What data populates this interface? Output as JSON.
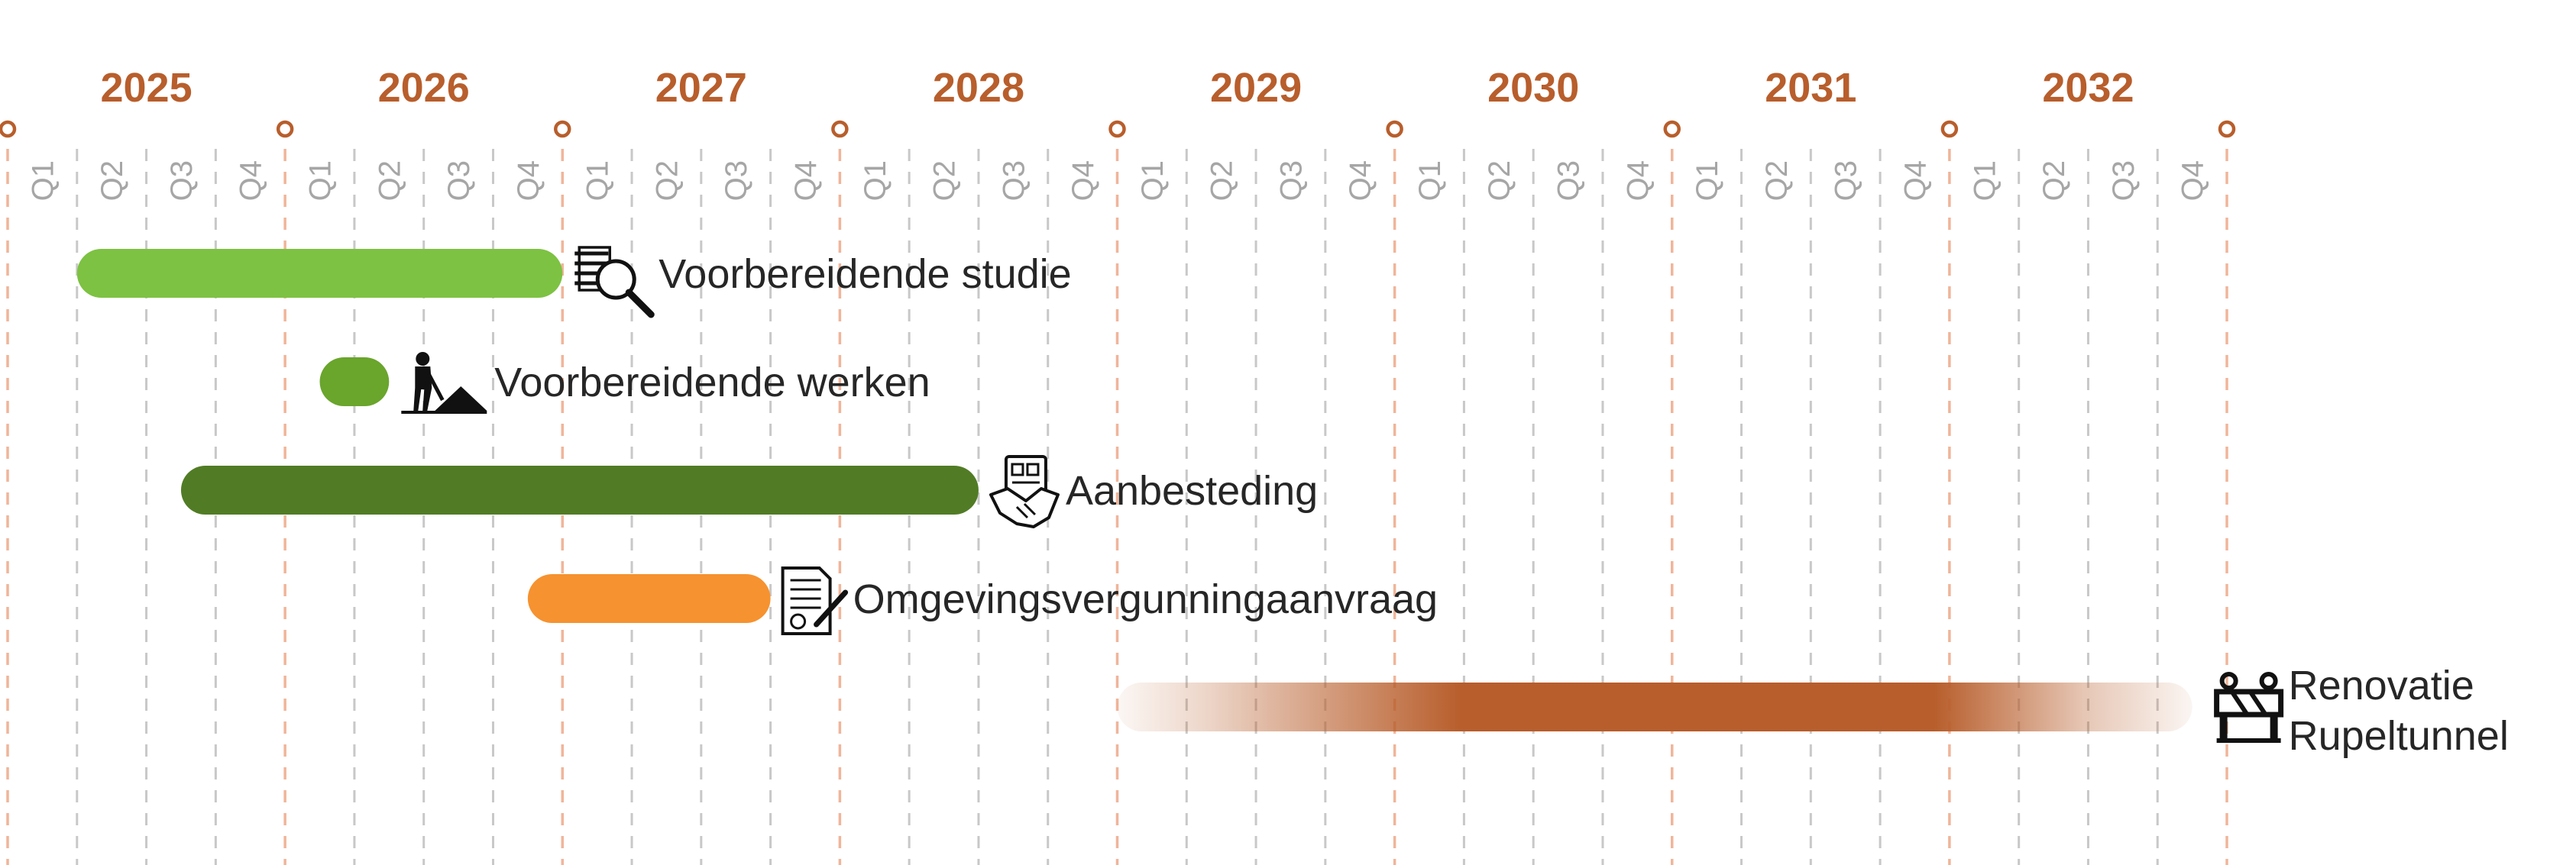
{
  "colors": {
    "accent": "#b85e2c",
    "quarter_grid": "#c8c8c8",
    "year_grid": "#f0b59a",
    "text": "#262626",
    "quarter_text": "#a6a6a6"
  },
  "chart_data": {
    "type": "gantt",
    "title": "",
    "x_axis": {
      "start": 2025.0,
      "end": 2033.0,
      "years": [
        "2025",
        "2026",
        "2027",
        "2028",
        "2029",
        "2030",
        "2031",
        "2032"
      ],
      "quarter_labels": [
        "Q1",
        "Q2",
        "Q3",
        "Q4"
      ]
    },
    "tasks": [
      {
        "label": "Voorbereidende studie",
        "start": 2025.25,
        "end": 2027.0,
        "color": "#7dc242",
        "icon": "document-search-icon"
      },
      {
        "label": "Voorbereidende werken",
        "start": 2026.125,
        "end": 2026.375,
        "color": "#6aa52c",
        "icon": "construction-worker-icon"
      },
      {
        "label": "Aanbesteding",
        "start": 2025.625,
        "end": 2028.5,
        "color": "#517c25",
        "icon": "contract-handshake-icon"
      },
      {
        "label": "Omgevingsvergunningaanvraag",
        "start": 2026.875,
        "end": 2027.75,
        "color": "#f6922f",
        "icon": "signed-document-icon"
      },
      {
        "label_lines": [
          "Renovatie",
          "Rupeltunnel"
        ],
        "start": 2029.0,
        "end": 2032.875,
        "color": "#b85e2c",
        "gradient": true,
        "icon": "road-barrier-icon"
      }
    ]
  }
}
